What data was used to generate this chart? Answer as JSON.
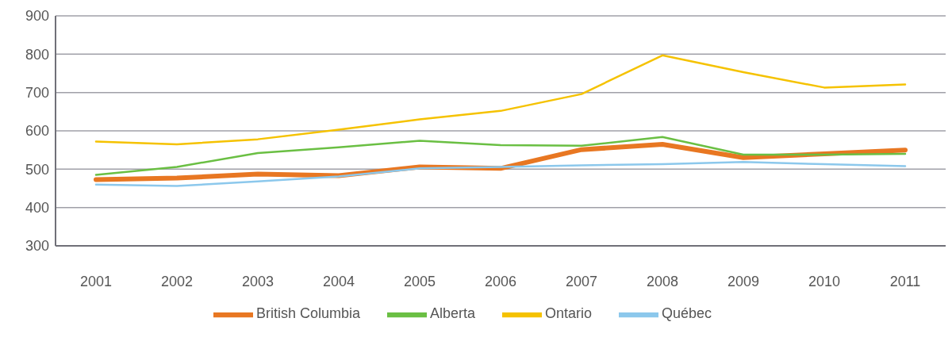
{
  "chart_data": {
    "type": "line",
    "categories": [
      "2001",
      "2002",
      "2003",
      "2004",
      "2005",
      "2006",
      "2007",
      "2008",
      "2009",
      "2010",
      "2011"
    ],
    "series": [
      {
        "name": "British Columbia",
        "color": "#e87722",
        "values": [
          473,
          477,
          487,
          483,
          506,
          502,
          551,
          565,
          530,
          540,
          550
        ]
      },
      {
        "name": "Alberta",
        "color": "#6abf43",
        "values": [
          485,
          506,
          542,
          557,
          574,
          563,
          561,
          584,
          538,
          538,
          540
        ]
      },
      {
        "name": "Ontario",
        "color": "#f5c200",
        "values": [
          572,
          565,
          578,
          603,
          630,
          652,
          696,
          797,
          753,
          713,
          721
        ]
      },
      {
        "name": "Québec",
        "color": "#8cc8ec",
        "values": [
          460,
          456,
          468,
          481,
          502,
          506,
          510,
          513,
          519,
          513,
          508
        ]
      }
    ],
    "ylim": [
      300,
      900
    ],
    "yticks": [
      300,
      400,
      500,
      600,
      700,
      800,
      900
    ],
    "grid": "y",
    "legend": "bottom",
    "marker": "none",
    "line_style": "solid"
  }
}
